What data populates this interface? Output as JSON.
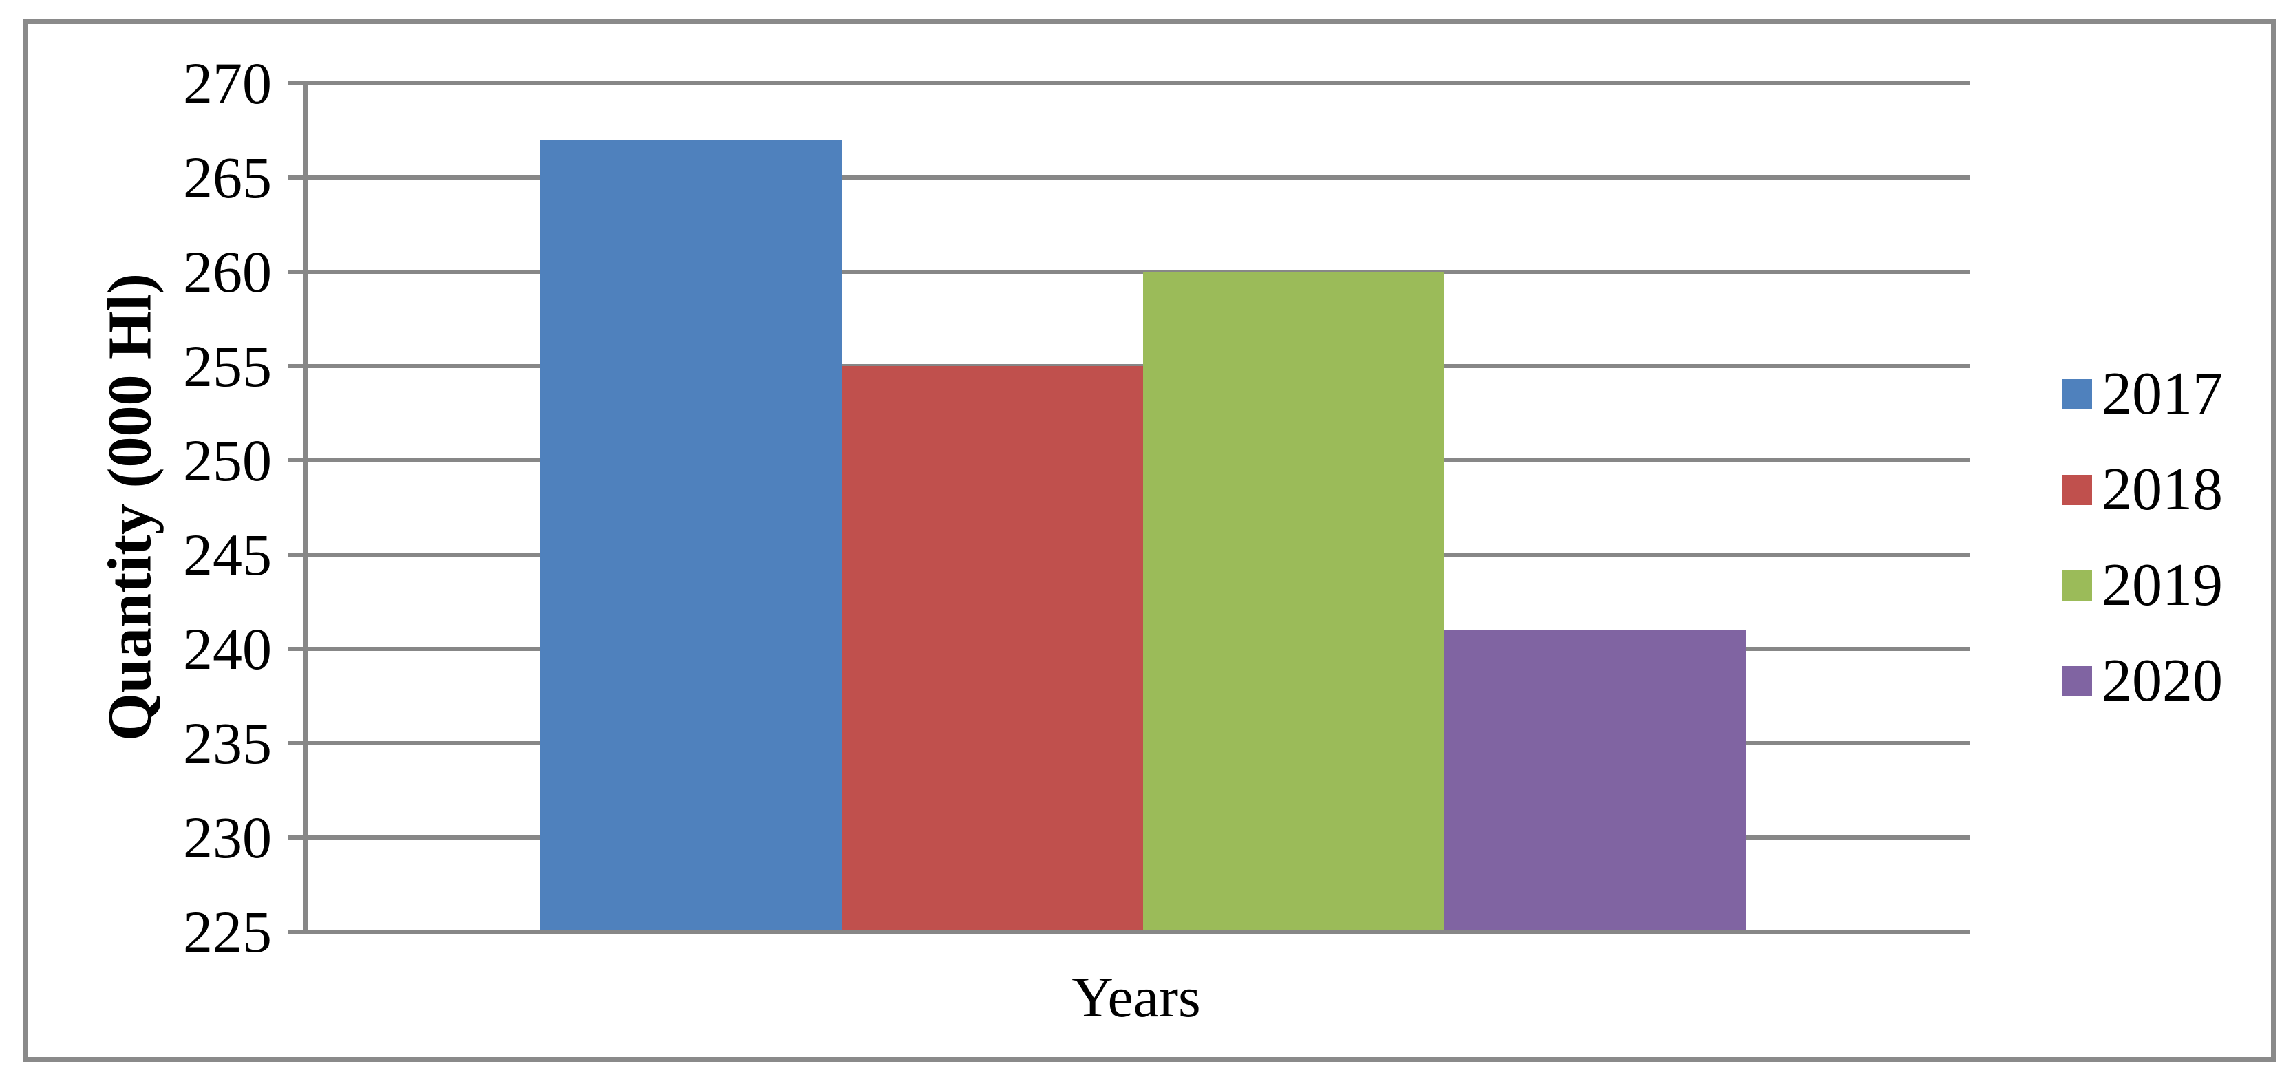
{
  "chart_data": {
    "type": "bar",
    "title": "",
    "xlabel": "Years",
    "ylabel": "Quantity (000 Hl)",
    "categories": [
      "2017",
      "2018",
      "2019",
      "2020"
    ],
    "series": [
      {
        "name": "2017",
        "value": 267,
        "color": "#4F81BD"
      },
      {
        "name": "2018",
        "value": 255,
        "color": "#C0504D"
      },
      {
        "name": "2019",
        "value": 260,
        "color": "#9BBB59"
      },
      {
        "name": "2020",
        "value": 241,
        "color": "#8064A2"
      }
    ],
    "ylim": [
      225,
      270
    ],
    "ytick_step": 5,
    "ytick_labels": [
      "225",
      "230",
      "235",
      "240",
      "245",
      "250",
      "255",
      "260",
      "265",
      "270"
    ],
    "grid": true,
    "legend_position": "right",
    "styles": {
      "grid_color": "#878787",
      "axis_color": "#878787",
      "frame_color": "#8a8a8a",
      "background": "#FFFFFF",
      "text_color": "#000000"
    }
  }
}
